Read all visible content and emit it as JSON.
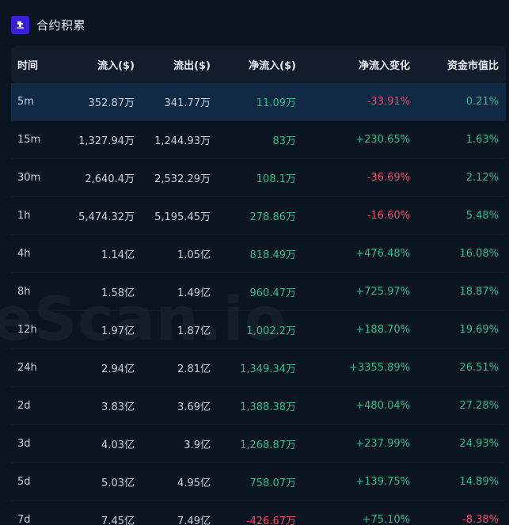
{
  "header": {
    "title": "合约积累",
    "logo_icon": "tool-icon"
  },
  "watermark": "eScan.io",
  "colors": {
    "positive": "#2ebd85",
    "negative": "#f6465d",
    "accent": "#3a1fd6"
  },
  "table": {
    "columns": [
      "时间",
      "流入($)",
      "流出($)",
      "净流入($)",
      "净流入变化",
      "资金市值比"
    ],
    "rows": [
      {
        "time": "5m",
        "inflow": "352.87万",
        "outflow": "341.77万",
        "net": "11.09万",
        "net_sign": "pos",
        "change": "-33.91%",
        "change_sign": "neg",
        "ratio": "0.21%",
        "ratio_sign": "pos"
      },
      {
        "time": "15m",
        "inflow": "1,327.94万",
        "outflow": "1,244.93万",
        "net": "83万",
        "net_sign": "pos",
        "change": "+230.65%",
        "change_sign": "pos",
        "ratio": "1.63%",
        "ratio_sign": "pos"
      },
      {
        "time": "30m",
        "inflow": "2,640.4万",
        "outflow": "2,532.29万",
        "net": "108.1万",
        "net_sign": "pos",
        "change": "-36.69%",
        "change_sign": "neg",
        "ratio": "2.12%",
        "ratio_sign": "pos"
      },
      {
        "time": "1h",
        "inflow": "5,474.32万",
        "outflow": "5,195.45万",
        "net": "278.86万",
        "net_sign": "pos",
        "change": "-16.60%",
        "change_sign": "neg",
        "ratio": "5.48%",
        "ratio_sign": "pos"
      },
      {
        "time": "4h",
        "inflow": "1.14亿",
        "outflow": "1.05亿",
        "net": "818.49万",
        "net_sign": "pos",
        "change": "+476.48%",
        "change_sign": "pos",
        "ratio": "16.08%",
        "ratio_sign": "pos"
      },
      {
        "time": "8h",
        "inflow": "1.58亿",
        "outflow": "1.49亿",
        "net": "960.47万",
        "net_sign": "pos",
        "change": "+725.97%",
        "change_sign": "pos",
        "ratio": "18.87%",
        "ratio_sign": "pos"
      },
      {
        "time": "12h",
        "inflow": "1.97亿",
        "outflow": "1.87亿",
        "net": "1,002.2万",
        "net_sign": "pos",
        "change": "+188.70%",
        "change_sign": "pos",
        "ratio": "19.69%",
        "ratio_sign": "pos"
      },
      {
        "time": "24h",
        "inflow": "2.94亿",
        "outflow": "2.81亿",
        "net": "1,349.34万",
        "net_sign": "pos",
        "change": "+3355.89%",
        "change_sign": "pos",
        "ratio": "26.51%",
        "ratio_sign": "pos"
      },
      {
        "time": "2d",
        "inflow": "3.83亿",
        "outflow": "3.69亿",
        "net": "1,388.38万",
        "net_sign": "pos",
        "change": "+480.04%",
        "change_sign": "pos",
        "ratio": "27.28%",
        "ratio_sign": "pos"
      },
      {
        "time": "3d",
        "inflow": "4.03亿",
        "outflow": "3.9亿",
        "net": "1,268.87万",
        "net_sign": "pos",
        "change": "+237.99%",
        "change_sign": "pos",
        "ratio": "24.93%",
        "ratio_sign": "pos"
      },
      {
        "time": "5d",
        "inflow": "5.03亿",
        "outflow": "4.95亿",
        "net": "758.07万",
        "net_sign": "pos",
        "change": "+139.75%",
        "change_sign": "pos",
        "ratio": "14.89%",
        "ratio_sign": "pos"
      },
      {
        "time": "7d",
        "inflow": "7.45亿",
        "outflow": "7.49亿",
        "net": "-426.67万",
        "net_sign": "neg",
        "change": "+75.10%",
        "change_sign": "pos",
        "ratio": "-8.38%",
        "ratio_sign": "neg"
      }
    ]
  }
}
